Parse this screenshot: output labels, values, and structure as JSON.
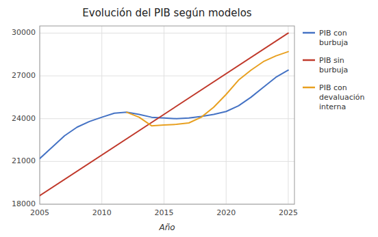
{
  "chart_data": {
    "type": "line",
    "title": "Evolución del PIB según modelos",
    "x_label": "Año",
    "xlim": [
      2005,
      2025.5
    ],
    "ylim": [
      18000,
      30500
    ],
    "xticks": [
      2005,
      2010,
      2015,
      2020,
      2025
    ],
    "yticks": [
      18000,
      21000,
      24000,
      27000,
      30000
    ],
    "grid": true,
    "legend": "right",
    "series": [
      {
        "name": "PIB con\nburbuja",
        "color": "#4472C4",
        "x": [
          2005,
          2006,
          2007,
          2008,
          2009,
          2010,
          2011,
          2012,
          2013,
          2014,
          2015,
          2016,
          2017,
          2018,
          2019,
          2020,
          2021,
          2022,
          2023,
          2024,
          2025
        ],
        "values": [
          21200,
          22000,
          22800,
          23400,
          23800,
          24100,
          24380,
          24450,
          24300,
          24100,
          24050,
          24000,
          24050,
          24150,
          24300,
          24500,
          24900,
          25500,
          26200,
          26900,
          27400
        ]
      },
      {
        "name": "PIB sin\nburbuja",
        "color": "#C0392B",
        "x": [
          2005,
          2025
        ],
        "values": [
          18600,
          30000
        ]
      },
      {
        "name": "PIB con\ndevaluación\ninterna",
        "color": "#E8A020",
        "x": [
          2012,
          2013,
          2014,
          2015,
          2016,
          2017,
          2018,
          2019,
          2020,
          2021,
          2022,
          2023,
          2024,
          2025
        ],
        "values": [
          24450,
          24100,
          23500,
          23550,
          23600,
          23700,
          24100,
          24800,
          25700,
          26700,
          27400,
          28000,
          28400,
          28700
        ]
      }
    ]
  }
}
